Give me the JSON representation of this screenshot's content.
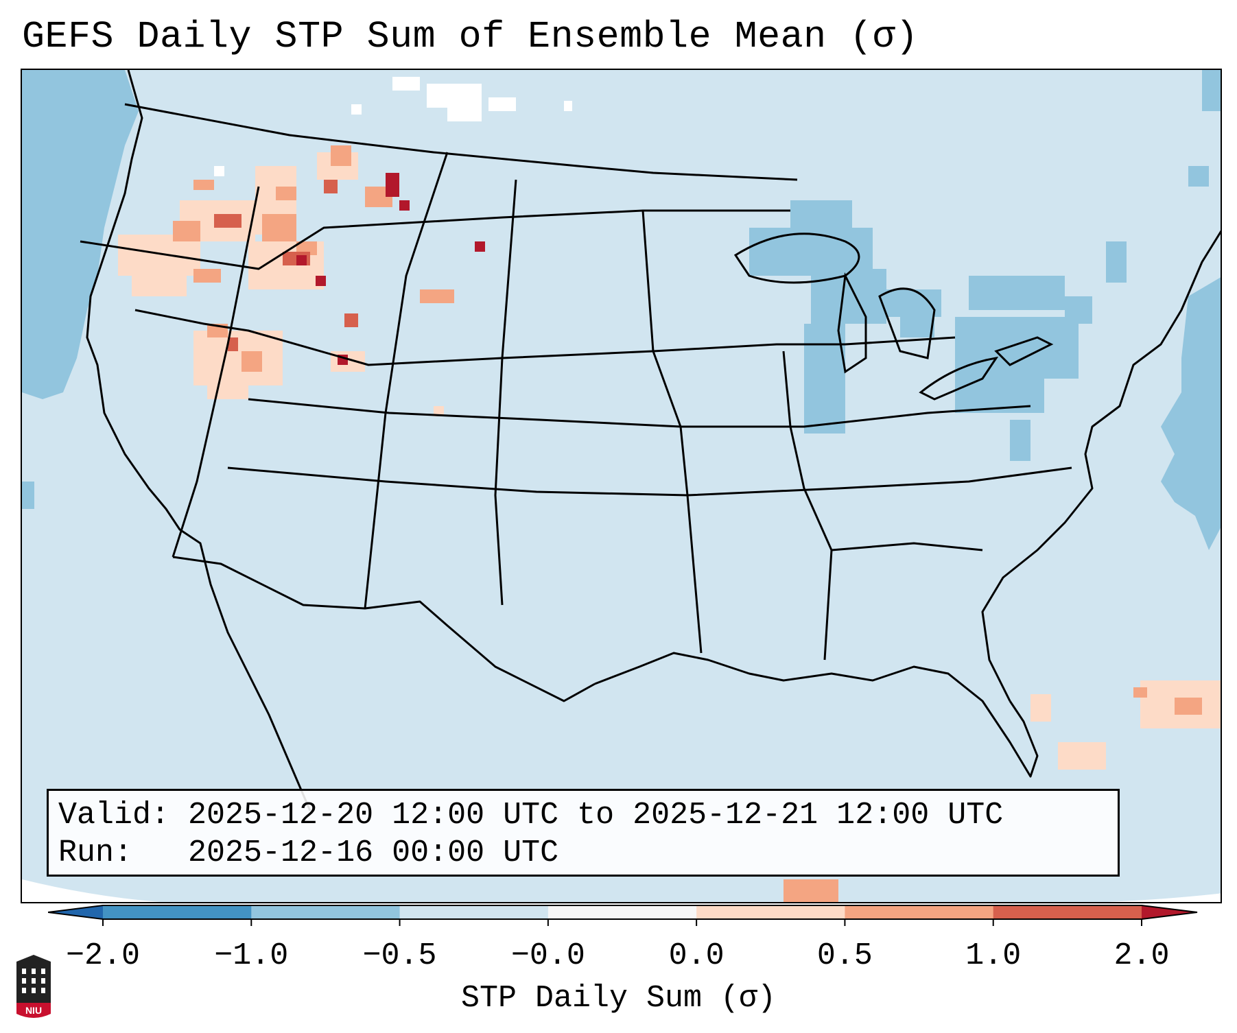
{
  "title": "GEFS Daily STP Sum of Ensemble Mean (σ)",
  "info": {
    "valid": "Valid: 2025-12-20 12:00 UTC to 2025-12-21 12:00 UTC",
    "run": "Run:   2025-12-16 00:00 UTC"
  },
  "colorbar": {
    "label": "STP Daily Sum (σ)",
    "ticks": [
      "−2.0",
      "−1.0",
      "−0.5",
      "−0.0",
      "0.0",
      "0.5",
      "1.0",
      "2.0"
    ],
    "colors": [
      "#4393c3",
      "#92c5de",
      "#d1e5f0",
      "#f7f7f7",
      "#fddbc7",
      "#f4a582",
      "#d6604d"
    ],
    "extend_low_color": "#2166ac",
    "extend_high_color": "#b2182b",
    "background_color": "#d1e5f0",
    "outside_color": "#ffffff"
  },
  "map": {
    "region": "CONUS",
    "highlights": [
      {
        "area": "Idaho / Montana",
        "max_value": 2.0
      },
      {
        "area": "Oregon / Nevada",
        "max_value": 1.0
      },
      {
        "area": "Utah",
        "max_value": 2.0
      },
      {
        "area": "Wyoming",
        "max_value": 2.0
      },
      {
        "area": "Great Lakes / Northeast",
        "min_value": -1.0
      },
      {
        "area": "Bahamas / Atlantic",
        "max_value": 1.0
      }
    ]
  },
  "logo_text": "NIU"
}
